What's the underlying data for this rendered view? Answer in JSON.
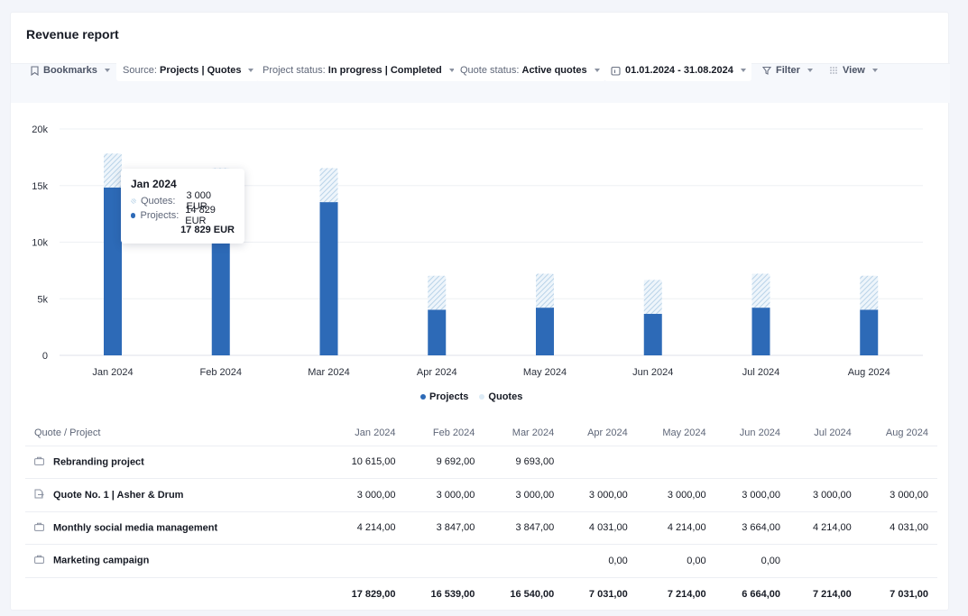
{
  "title": "Revenue report",
  "toolbar": {
    "bookmarks": "Bookmarks",
    "source_label": "Source:",
    "source_value": "Projects | Quotes",
    "project_status_label": "Project status:",
    "project_status_value": "In progress | Completed",
    "quote_status_label": "Quote status:",
    "quote_status_value": "Active quotes",
    "date_range": "01.01.2024 - 31.08.2024",
    "filter": "Filter",
    "view": "View"
  },
  "chart_data": {
    "type": "bar",
    "stacked": true,
    "categories": [
      "Jan 2024",
      "Feb 2024",
      "Mar 2024",
      "Apr 2024",
      "May 2024",
      "Jun 2024",
      "Jul 2024",
      "Aug 2024"
    ],
    "series": [
      {
        "name": "Projects",
        "values": [
          14829,
          13539,
          13540,
          4031,
          4214,
          3664,
          4214,
          4031
        ],
        "color": "#2d6ab7"
      },
      {
        "name": "Quotes",
        "values": [
          3000,
          3000,
          3000,
          3000,
          3000,
          3000,
          3000,
          3000
        ],
        "color": "#c7dcec"
      }
    ],
    "y_ticks": [
      "0",
      "5k",
      "10k",
      "15k",
      "20k"
    ],
    "ylim": [
      0,
      20000
    ],
    "grid": true,
    "legend": "bottom-center"
  },
  "legend": {
    "projects": "Projects",
    "quotes": "Quotes"
  },
  "tooltip": {
    "title": "Jan 2024",
    "quotes_label": "Quotes:",
    "quotes_value": "3 000 EUR",
    "projects_label": "Projects:",
    "projects_value": "14 829 EUR",
    "total": "17 829 EUR"
  },
  "table": {
    "headers": [
      "Quote / Project",
      "Jan 2024",
      "Feb 2024",
      "Mar 2024",
      "Apr 2024",
      "May 2024",
      "Jun 2024",
      "Jul 2024",
      "Aug 2024"
    ],
    "rows": [
      {
        "icon": "briefcase-icon",
        "name": "Rebranding project",
        "values": [
          "10 615,00",
          "9 692,00",
          "9 693,00",
          "",
          "",
          "",
          "",
          ""
        ]
      },
      {
        "icon": "quote-document-icon",
        "name": "Quote No. 1 | Asher & Drum",
        "values": [
          "3 000,00",
          "3 000,00",
          "3 000,00",
          "3 000,00",
          "3 000,00",
          "3 000,00",
          "3 000,00",
          "3 000,00"
        ]
      },
      {
        "icon": "briefcase-icon",
        "name": "Monthly social media management",
        "values": [
          "4 214,00",
          "3 847,00",
          "3 847,00",
          "4 031,00",
          "4 214,00",
          "3 664,00",
          "4 214,00",
          "4 031,00"
        ]
      },
      {
        "icon": "briefcase-icon",
        "name": "Marketing campaign",
        "values": [
          "",
          "",
          "",
          "0,00",
          "0,00",
          "0,00",
          "",
          ""
        ]
      }
    ],
    "totals": [
      "17 829,00",
      "16 539,00",
      "16 540,00",
      "7 031,00",
      "7 214,00",
      "6 664,00",
      "7 214,00",
      "7 031,00"
    ]
  }
}
